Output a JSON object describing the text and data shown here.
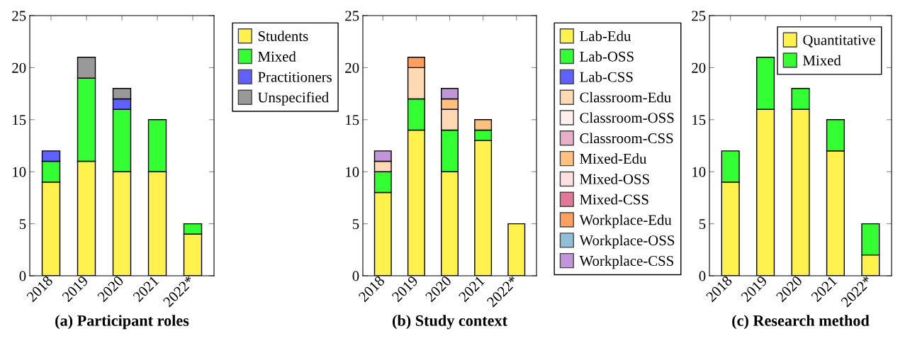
{
  "chart_data": [
    {
      "type": "bar",
      "stacked": true,
      "title": "(a) Participant roles",
      "categories": [
        "2018",
        "2019",
        "2020",
        "2021",
        "2022*"
      ],
      "ylim": [
        0,
        25
      ],
      "yticks": [
        0,
        5,
        10,
        15,
        20,
        25
      ],
      "legend": "right",
      "grid": false,
      "series": [
        {
          "name": "Students",
          "color": "#fff24f",
          "values": [
            9,
            11,
            10,
            10,
            4
          ]
        },
        {
          "name": "Mixed",
          "color": "#33ff33",
          "values": [
            2,
            8,
            6,
            5,
            1
          ]
        },
        {
          "name": "Practitioners",
          "color": "#6060ff",
          "values": [
            1,
            null,
            1,
            null,
            null
          ]
        },
        {
          "name": "Unspecified",
          "color": "#999999",
          "values": [
            null,
            2,
            1,
            null,
            null
          ]
        }
      ]
    },
    {
      "type": "bar",
      "stacked": true,
      "title": "(b) Study context",
      "categories": [
        "2018",
        "2019",
        "2020",
        "2021",
        "2022*"
      ],
      "ylim": [
        0,
        25
      ],
      "yticks": [
        0,
        5,
        10,
        15,
        20,
        25
      ],
      "legend": "right",
      "grid": false,
      "series": [
        {
          "name": "Lab-Edu",
          "color": "#fff24f",
          "values": [
            8,
            14,
            10,
            13,
            5
          ]
        },
        {
          "name": "Lab-OSS",
          "color": "#33ff33",
          "values": [
            2,
            3,
            4,
            1,
            null
          ]
        },
        {
          "name": "Lab-CSS",
          "color": "#6060ff",
          "values": [
            null,
            null,
            null,
            null,
            null
          ]
        },
        {
          "name": "Classroom-Edu",
          "color": "#ffd9b3",
          "values": [
            1,
            3,
            2,
            null,
            null
          ]
        },
        {
          "name": "Classroom-OSS",
          "color": "#ffeeee",
          "values": [
            null,
            null,
            null,
            null,
            null
          ]
        },
        {
          "name": "Classroom-CSS",
          "color": "#e8b0c8",
          "values": [
            null,
            null,
            null,
            null,
            null
          ]
        },
        {
          "name": "Mixed-Edu",
          "color": "#ffc080",
          "values": [
            null,
            null,
            1,
            1,
            null
          ]
        },
        {
          "name": "Mixed-OSS",
          "color": "#ffe0e0",
          "values": [
            null,
            null,
            null,
            null,
            null
          ]
        },
        {
          "name": "Mixed-CSS",
          "color": "#e07898",
          "values": [
            null,
            null,
            null,
            null,
            null
          ]
        },
        {
          "name": "Workplace-Edu",
          "color": "#ffa060",
          "values": [
            null,
            1,
            null,
            null,
            null
          ]
        },
        {
          "name": "Workplace-OSS",
          "color": "#90c0d8",
          "values": [
            null,
            null,
            null,
            null,
            null
          ]
        },
        {
          "name": "Workplace-CSS",
          "color": "#c096d8",
          "values": [
            1,
            null,
            1,
            null,
            null
          ]
        }
      ]
    },
    {
      "type": "bar",
      "stacked": true,
      "title": "(c) Research method",
      "categories": [
        "2018",
        "2019",
        "2020",
        "2021",
        "2022*"
      ],
      "ylim": [
        0,
        25
      ],
      "yticks": [
        0,
        5,
        10,
        15,
        20,
        25
      ],
      "legend": "top right",
      "grid": false,
      "series": [
        {
          "name": "Quantitative",
          "color": "#fff24f",
          "values": [
            9,
            16,
            16,
            12,
            2
          ]
        },
        {
          "name": "Mixed",
          "color": "#33ff33",
          "values": [
            3,
            5,
            2,
            3,
            3
          ]
        }
      ]
    }
  ]
}
